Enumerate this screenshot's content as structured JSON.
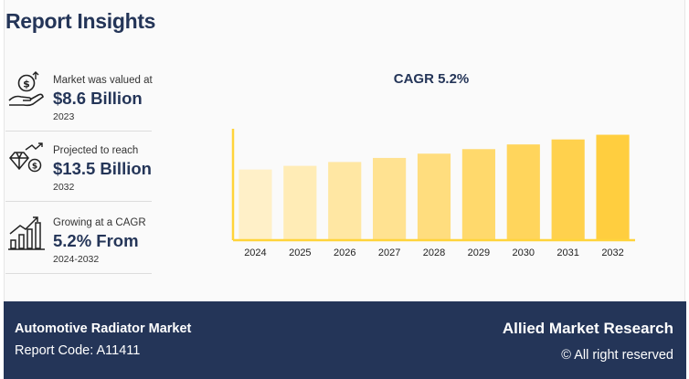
{
  "title": "Report Insights",
  "stats": [
    {
      "label": "Market was valued at",
      "value": "$8.6 Billion",
      "year": "2023",
      "icon": "money-hand-icon"
    },
    {
      "label": "Projected to reach",
      "value": "$13.5 Billion",
      "year": "2032",
      "icon": "diamond-growth-icon"
    },
    {
      "label": "Growing at a CAGR",
      "value": "5.2% From",
      "year": "2024-2032",
      "icon": "bar-growth-icon"
    }
  ],
  "chart_data": {
    "type": "bar",
    "title": "CAGR 5.2%",
    "categories": [
      "2024",
      "2025",
      "2026",
      "2027",
      "2028",
      "2029",
      "2030",
      "2031",
      "2032"
    ],
    "values": [
      9.05,
      9.52,
      10.01,
      10.53,
      11.08,
      11.66,
      12.26,
      12.9,
      13.5
    ],
    "ylim": [
      0,
      14.5
    ],
    "grid": false,
    "colors": [
      "#fff0c8",
      "#ffecb6",
      "#ffe7a3",
      "#ffe291",
      "#ffdd7e",
      "#ffd96c",
      "#ffd55c",
      "#ffd14d",
      "#ffce3f"
    ],
    "axis_color": "#ffd43b"
  },
  "footer": {
    "report_name": "Automotive Radiator Market",
    "report_code": "Report Code: A11411",
    "brand": "Allied Market Research",
    "rights": "© All right reserved"
  }
}
